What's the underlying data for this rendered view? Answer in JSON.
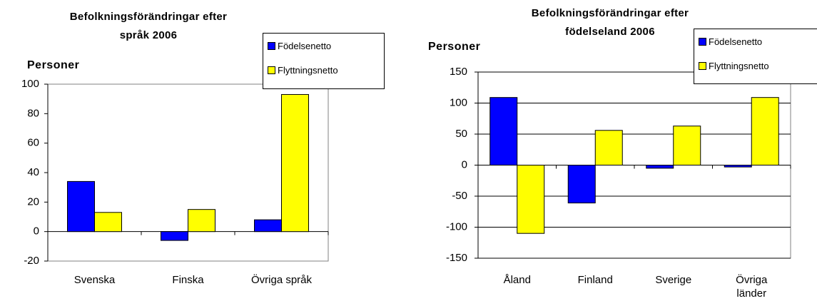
{
  "chart_data": [
    {
      "type": "bar",
      "title": "Befolkningsförändringar efter språk 2006",
      "y_label": "Personer",
      "categories": [
        "Svenska",
        "Finska",
        "Övriga språk"
      ],
      "series": [
        {
          "name": "Födelsenetto",
          "color": "#0000ff",
          "values": [
            34,
            -6,
            8
          ]
        },
        {
          "name": "Flyttningsnetto",
          "color": "#ffff00",
          "values": [
            13,
            15,
            93
          ]
        }
      ],
      "ylim": [
        -20,
        100
      ],
      "yticks": [
        -20,
        0,
        20,
        40,
        60,
        80,
        100
      ],
      "grid": false,
      "legend": "top-right"
    },
    {
      "type": "bar",
      "title": "Befolkningsförändringar efter födelseland 2006",
      "y_label": "Personer",
      "categories": [
        "Åland",
        "Finland",
        "Sverige",
        "Övriga länder"
      ],
      "series": [
        {
          "name": "Födelsenetto",
          "color": "#0000ff",
          "values": [
            109,
            -61,
            -5,
            -3
          ]
        },
        {
          "name": "Flyttningsnetto",
          "color": "#ffff00",
          "values": [
            -110,
            56,
            63,
            109
          ]
        }
      ],
      "ylim": [
        -150,
        150
      ],
      "yticks": [
        -150,
        -100,
        -50,
        0,
        50,
        100,
        150
      ],
      "grid": true,
      "legend": "top-right"
    }
  ]
}
